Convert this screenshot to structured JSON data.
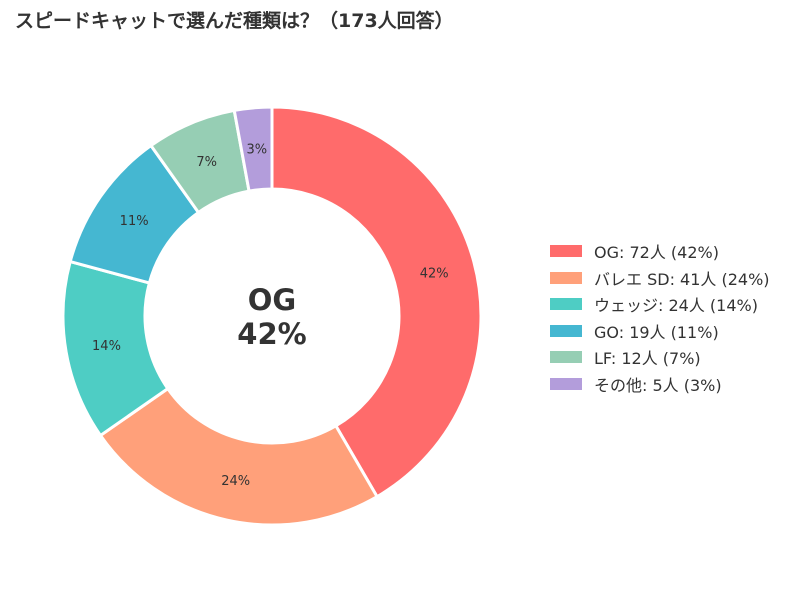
{
  "chart_data": {
    "type": "pie",
    "variant": "donut",
    "title": "スピードキャットで選んだ種類は？（173人回答）",
    "total_respondents": 173,
    "slices": [
      {
        "label": "OG",
        "count": 72,
        "percent": 42,
        "pct_label": "42%",
        "legend": "OG:  72人 (42%)",
        "color": "#ff6b6b"
      },
      {
        "label": "バレエ SD",
        "count": 41,
        "percent": 24,
        "pct_label": "24%",
        "legend": "バレエ SD:  41人 (24%)",
        "color": "#ffa07a"
      },
      {
        "label": "ウェッジ",
        "count": 24,
        "percent": 14,
        "pct_label": "14%",
        "legend": "ウェッジ:  24人 (14%)",
        "color": "#4ecdc4"
      },
      {
        "label": "GO",
        "count": 19,
        "percent": 11,
        "pct_label": "11%",
        "legend": "GO:  19人 (11%)",
        "color": "#45b7d1"
      },
      {
        "label": "LF",
        "count": 12,
        "percent": 7,
        "pct_label": "7%",
        "legend": "LF:  12人 (7%)",
        "color": "#96ceb4"
      },
      {
        "label": "その他",
        "count": 5,
        "percent": 3,
        "pct_label": "3%",
        "legend": "その他:  5人 (3%)",
        "color": "#b39ddb"
      }
    ],
    "center_label": {
      "name": "OG",
      "percent": "42%"
    },
    "legend_position": "right",
    "start_angle": "top, clockwise"
  }
}
